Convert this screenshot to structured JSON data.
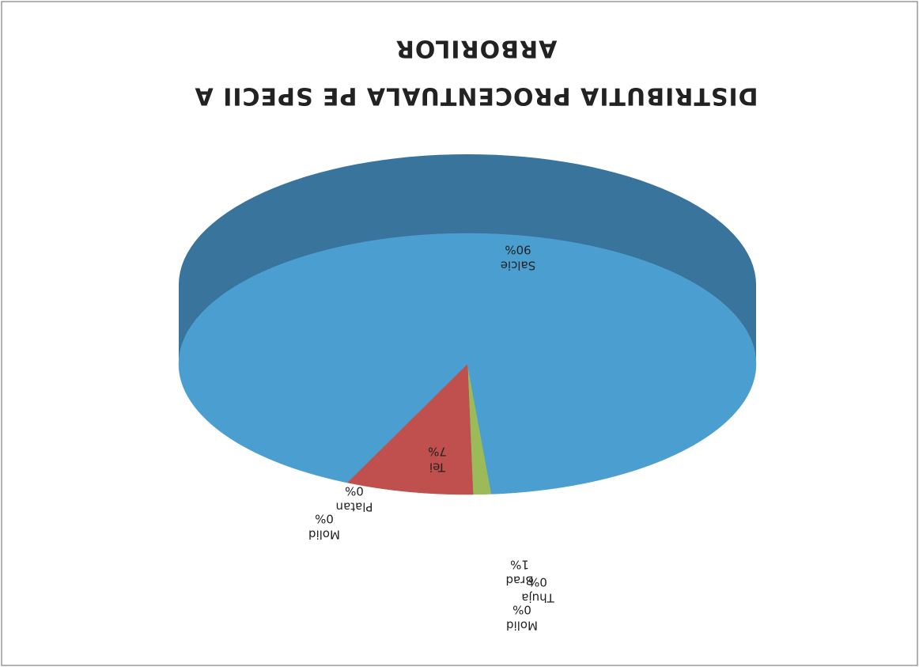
{
  "chart_data": {
    "type": "pie3d",
    "title": [
      "DISTRIBUTIA  PROCENTUALA PE SPECII  A",
      "ARBORILOR"
    ],
    "categories": [
      "Molid",
      "Thuja",
      "Brad",
      "Molid",
      "Platan",
      "Tei",
      "Salcie"
    ],
    "values": [
      0,
      0,
      1,
      0,
      0,
      7,
      90
    ],
    "value_labels": [
      "0%",
      "0%",
      "1%",
      "0%",
      "0%",
      "7%",
      "90%"
    ],
    "colors": [
      "#8064a2",
      "#f79646",
      "#9bbb59",
      "#4bacc6",
      "#7f7f7f",
      "#c0504d",
      "#4a9fd0"
    ]
  }
}
